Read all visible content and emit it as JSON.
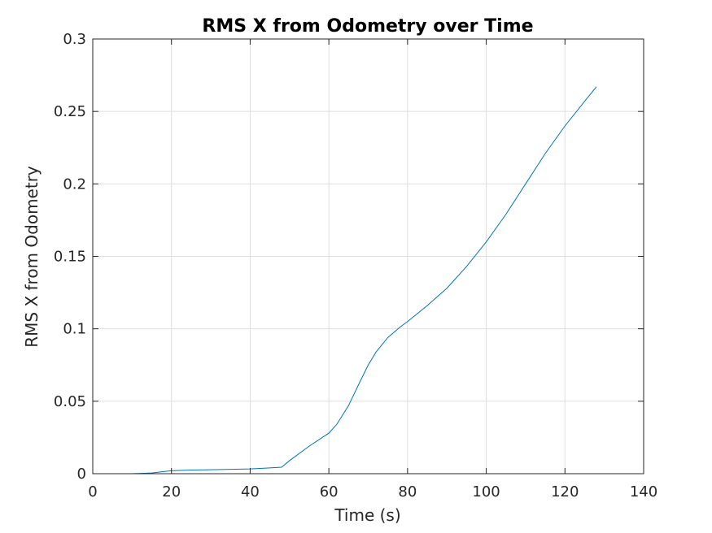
{
  "chart_data": {
    "type": "line",
    "title": "RMS X from Odometry over Time",
    "xlabel": "Time (s)",
    "ylabel": "RMS X from Odometry",
    "xlim": [
      0,
      140
    ],
    "ylim": [
      0,
      0.3
    ],
    "xticks": [
      0,
      20,
      40,
      60,
      80,
      100,
      120,
      140
    ],
    "xtick_labels": [
      "0",
      "20",
      "40",
      "60",
      "80",
      "100",
      "120",
      "140"
    ],
    "yticks": [
      0,
      0.05,
      0.1,
      0.15,
      0.2,
      0.25,
      0.3
    ],
    "ytick_labels": [
      "0",
      "0.05",
      "0.1",
      "0.15",
      "0.2",
      "0.25",
      "0.3"
    ],
    "grid": true,
    "series": [
      {
        "color": "#0072bd",
        "x": [
          3,
          10,
          15,
          18,
          20,
          25,
          30,
          35,
          40,
          45,
          48,
          50,
          55,
          60,
          62,
          65,
          68,
          70,
          72,
          75,
          78,
          80,
          85,
          90,
          95,
          100,
          105,
          110,
          115,
          120,
          125,
          128
        ],
        "y": [
          0.0,
          0.0,
          0.0005,
          0.0015,
          0.002,
          0.0025,
          0.0027,
          0.003,
          0.0033,
          0.004,
          0.0045,
          0.009,
          0.019,
          0.028,
          0.034,
          0.047,
          0.064,
          0.075,
          0.084,
          0.094,
          0.101,
          0.105,
          0.116,
          0.128,
          0.143,
          0.16,
          0.179,
          0.2,
          0.221,
          0.24,
          0.257,
          0.267
        ]
      }
    ]
  }
}
